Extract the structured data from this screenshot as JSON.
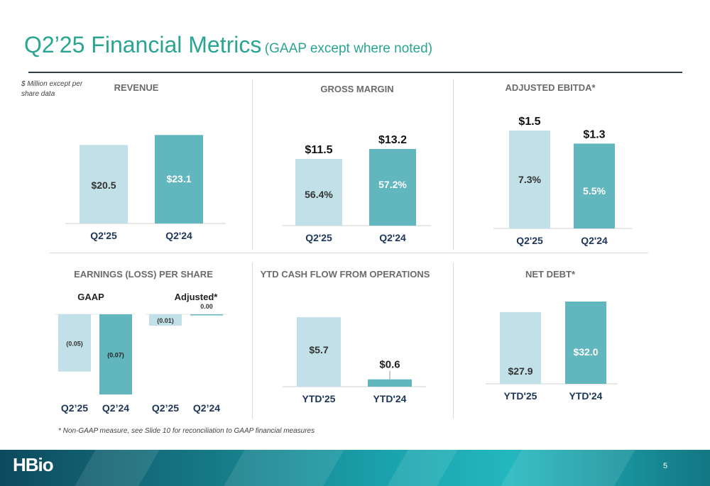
{
  "slide": {
    "title": "Q2’25 Financial Metrics",
    "title_note": "(GAAP except where noted)",
    "units_note": "$ Million except per share data",
    "footnote": "* Non-GAAP measure, see Slide 10 for reconciliation to GAAP financial measures",
    "page_number": "5",
    "logo_text": "HBio"
  },
  "colors": {
    "light_bar": "#c2e0e8",
    "dark_bar": "#62b6bd",
    "title": "#2aa591"
  },
  "panels": {
    "revenue": "REVENUE",
    "gross_margin": "GROSS MARGIN",
    "ebitda": "ADJUSTED EBITDA*",
    "eps": "EARNINGS (LOSS) PER SHARE",
    "cashflow": "YTD CASH FLOW FROM OPERATIONS",
    "netdebt": "NET DEBT*",
    "eps_gaap": "GAAP",
    "eps_adjusted": "Adjusted*"
  },
  "chart_data": [
    {
      "type": "bar",
      "title": "REVENUE",
      "categories": [
        "Q2'25",
        "Q2'24"
      ],
      "values": [
        20.5,
        23.1
      ],
      "bar_labels": [
        "$20.5",
        "$23.1"
      ],
      "ylim": [
        0,
        25
      ]
    },
    {
      "type": "bar",
      "title": "GROSS MARGIN",
      "categories": [
        "Q2'25",
        "Q2'24"
      ],
      "values": [
        11.5,
        13.2
      ],
      "bar_labels": [
        "56.4%",
        "57.2%"
      ],
      "top_labels": [
        "$11.5",
        "$13.2"
      ],
      "ylim": [
        0,
        22
      ]
    },
    {
      "type": "bar",
      "title": "ADJUSTED EBITDA*",
      "categories": [
        "Q2'25",
        "Q2'24"
      ],
      "values": [
        1.5,
        1.3
      ],
      "bar_labels": [
        "7.3%",
        "5.5%"
      ],
      "top_labels": [
        "$1.5",
        "$1.3"
      ],
      "ylim": [
        0,
        1.5
      ]
    },
    {
      "type": "bar",
      "title": "EARNINGS (LOSS) PER SHARE",
      "groups": [
        {
          "name": "GAAP",
          "categories": [
            "Q2’25",
            "Q2’24"
          ],
          "values": [
            -0.05,
            -0.07
          ],
          "bar_labels": [
            "(0.05)",
            "(0.07)"
          ]
        },
        {
          "name": "Adjusted*",
          "categories": [
            "Q2’25",
            "Q2’24"
          ],
          "values": [
            -0.01,
            0.0
          ],
          "bar_labels": [
            "(0.01)",
            "0.00"
          ]
        }
      ],
      "ylim": [
        -0.07,
        0
      ]
    },
    {
      "type": "bar",
      "title": "YTD CASH FLOW FROM OPERATIONS",
      "categories": [
        "YTD'25",
        "YTD'24"
      ],
      "values": [
        5.7,
        0.6
      ],
      "bar_labels": [
        "$5.7",
        "$0.6"
      ],
      "ylim": [
        0,
        6
      ]
    },
    {
      "type": "bar",
      "title": "NET DEBT*",
      "categories": [
        "YTD'25",
        "YTD'24"
      ],
      "values": [
        27.9,
        32.0
      ],
      "bar_labels": [
        "$27.9",
        "$32.0"
      ],
      "ylim": [
        0,
        48
      ]
    }
  ]
}
